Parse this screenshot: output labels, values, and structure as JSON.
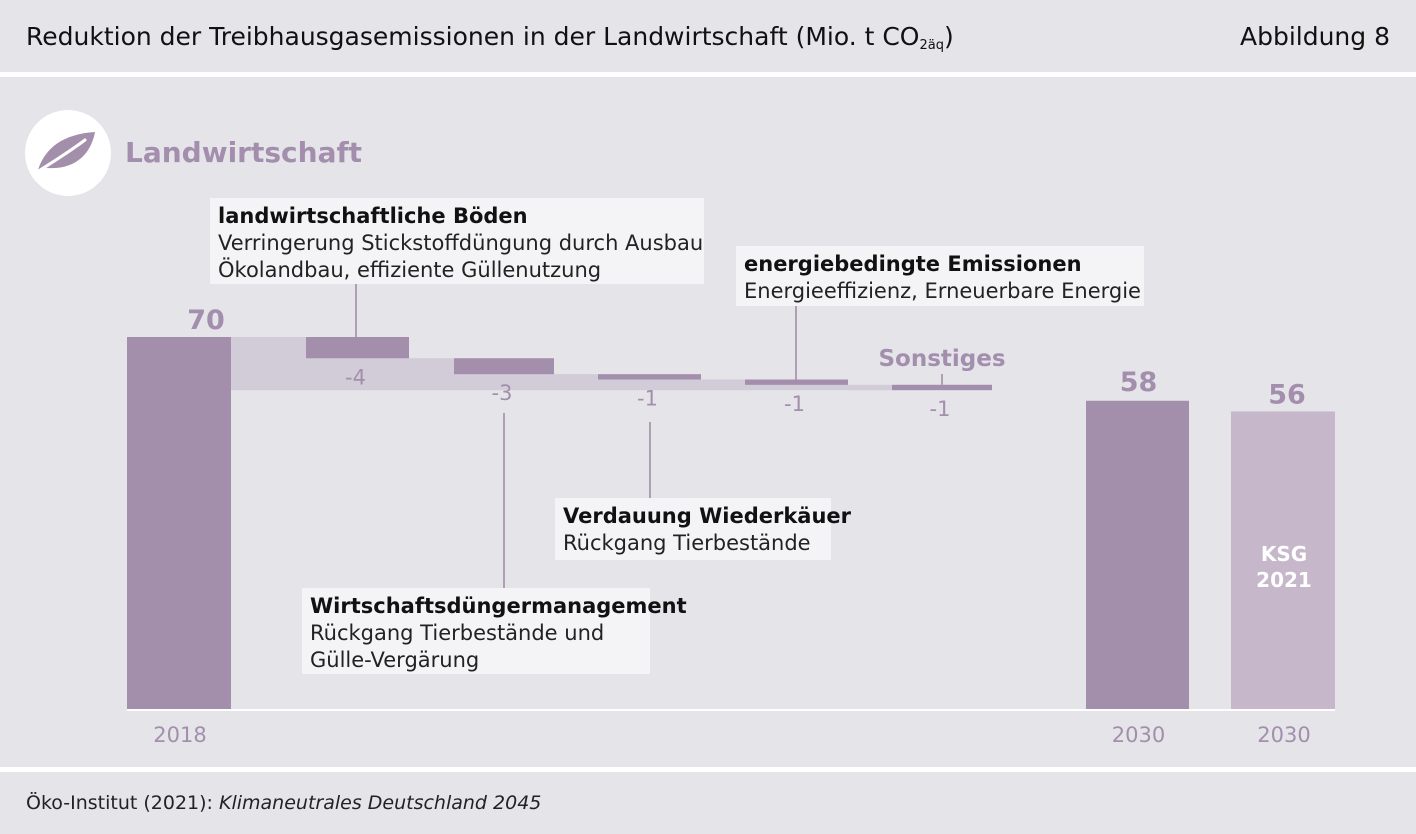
{
  "header": {
    "title_main": "Reduktion der Treibhausgasemissionen in der Landwirtschaft (Mio. t CO",
    "title_sub": "2äq",
    "title_end": ")",
    "figure_label": "Abbildung 8"
  },
  "sector": {
    "name": "Landwirtschaft",
    "icon": "leaf-icon"
  },
  "colors": {
    "bar_main": "#a38fab",
    "bar_target": "#c6b8ca",
    "connector": "#d1ccd8",
    "label": "#a38fad",
    "background": "#e4e4e9"
  },
  "chart_data": {
    "type": "bar",
    "subtype": "waterfall",
    "categories": [
      "2018",
      "landwirtschaftliche Böden",
      "Wirtschaftsdüngermanagement",
      "Verdauung Wiederkäuer",
      "energiebedingte Emissionen",
      "Sonstiges",
      "2030",
      "2030"
    ],
    "values": [
      70,
      -4,
      -3,
      -1,
      -1,
      -1,
      58,
      56
    ],
    "value_labels": [
      "70",
      "-4",
      "-3",
      "-1",
      "-1",
      "-1",
      "58",
      "56"
    ],
    "x_tick_labels": [
      "2018",
      "",
      "",
      "",
      "",
      "",
      "2030",
      "2030"
    ],
    "series_labels": {
      "sonstiges": "Sonstiges",
      "ksg_line1": "KSG",
      "ksg_line2": "2021"
    },
    "ylim": [
      0,
      70
    ],
    "grid": false
  },
  "callouts": [
    {
      "title": "landwirtschaftliche Böden",
      "lines": [
        "Verringerung Stickstoffdüngung durch Ausbau",
        "Ökolandbau, effiziente Güllenutzung"
      ]
    },
    {
      "title": "energiebedingte Emissionen",
      "lines": [
        "Energieeffizienz, Erneuerbare Energie"
      ]
    },
    {
      "title": "Verdauung Wiederkäuer",
      "lines": [
        "Rückgang Tierbestände"
      ]
    },
    {
      "title": "Wirtschaftsdüngermanagement",
      "lines": [
        "Rückgang Tierbestände und",
        "Gülle-Vergärung"
      ]
    }
  ],
  "source": {
    "prefix": "Öko-Institut (2021): ",
    "title": "Klimaneutrales Deutschland 2045"
  }
}
